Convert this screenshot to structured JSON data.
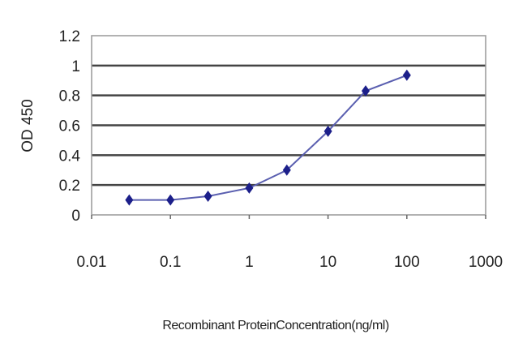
{
  "chart_data": {
    "type": "line",
    "title": "",
    "xlabel": "Recombinant ProteinConcentration(ng/ml)",
    "ylabel": "OD 450",
    "x_scale": "log",
    "xlim": [
      0.01,
      1000
    ],
    "ylim": [
      0,
      1.2
    ],
    "x_ticks": [
      "0.01",
      "0.1",
      "1",
      "10",
      "100",
      "1000"
    ],
    "x_tick_values": [
      0.01,
      0.1,
      1,
      10,
      100,
      1000
    ],
    "y_ticks": [
      "0",
      "0.2",
      "0.4",
      "0.6",
      "0.8",
      "1",
      "1.2"
    ],
    "y_tick_values": [
      0,
      0.2,
      0.4,
      0.6,
      0.8,
      1,
      1.2
    ],
    "grid": "horizontal",
    "legend": "none",
    "series": [
      {
        "color": "#1c1f8a",
        "marker": "diamond",
        "x": [
          0.03,
          0.1,
          0.3,
          1,
          3,
          10,
          30,
          100
        ],
        "y": [
          0.1,
          0.1,
          0.125,
          0.18,
          0.3,
          0.56,
          0.83,
          0.935
        ]
      }
    ]
  }
}
